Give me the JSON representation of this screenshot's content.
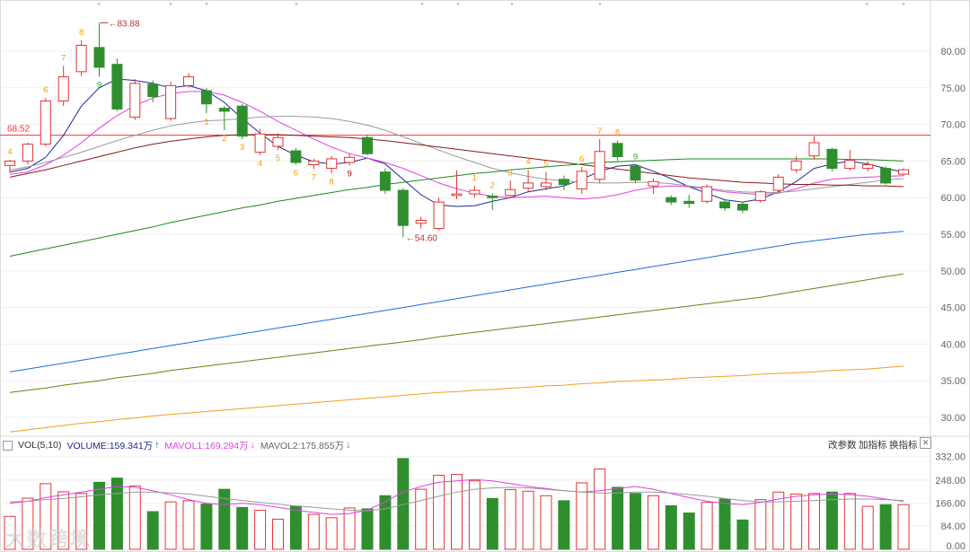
{
  "chart_data": {
    "type": "candlestick",
    "y_ticks": [
      "80.00",
      "75.00",
      "70.00",
      "65.00",
      "60.00",
      "55.00",
      "50.00",
      "45.00",
      "40.00",
      "35.00",
      "30.00"
    ],
    "ylim": [
      27,
      87
    ],
    "vol_ticks": [
      "332.00",
      "248.00",
      "166.00",
      "84.00",
      "0.00"
    ],
    "vol_lim": [
      0,
      360
    ],
    "ref_line": {
      "value": 68.52,
      "label": "68.52",
      "color": "#ff3030"
    },
    "max_label": {
      "value": 83.88,
      "label": "83.88",
      "index": 5
    },
    "min_label": {
      "value": 54.6,
      "label": "54.60",
      "index": 22
    },
    "candles": [
      {
        "o": 64.4,
        "c": 65.0,
        "h": 65.2,
        "l": 63.4,
        "v": 118,
        "td": "4",
        "tdc": "#f0a000",
        "tdp": "a"
      },
      {
        "o": 65.0,
        "c": 67.3,
        "h": 67.5,
        "l": 64.5,
        "v": 183,
        "td": "",
        "tdc": "",
        "tdp": ""
      },
      {
        "o": 67.3,
        "c": 73.2,
        "h": 73.6,
        "l": 67.0,
        "v": 235,
        "td": "6",
        "tdc": "#f0a000",
        "tdp": "a"
      },
      {
        "o": 73.2,
        "c": 76.5,
        "h": 78.0,
        "l": 72.5,
        "v": 206,
        "td": "7",
        "tdc": "#f0a000",
        "tdp": "a"
      },
      {
        "o": 77.2,
        "c": 80.8,
        "h": 81.5,
        "l": 76.6,
        "v": 200,
        "td": "8",
        "tdc": "#f0a000",
        "tdp": "a"
      },
      {
        "o": 80.5,
        "c": 77.8,
        "h": 83.88,
        "l": 76.5,
        "v": 240,
        "td": "9",
        "tdc": "#22aa22",
        "tdp": "b"
      },
      {
        "o": 78.2,
        "c": 72.1,
        "h": 79.0,
        "l": 71.8,
        "v": 255,
        "td": "",
        "tdc": "",
        "tdp": ""
      },
      {
        "o": 71.0,
        "c": 75.6,
        "h": 76.2,
        "l": 70.6,
        "v": 227,
        "td": "",
        "tdc": "",
        "tdp": ""
      },
      {
        "o": 75.5,
        "c": 73.8,
        "h": 76.0,
        "l": 73.0,
        "v": 135,
        "td": "",
        "tdc": "",
        "tdp": ""
      },
      {
        "o": 70.8,
        "c": 75.3,
        "h": 75.8,
        "l": 70.5,
        "v": 170,
        "td": "",
        "tdc": "",
        "tdp": ""
      },
      {
        "o": 75.3,
        "c": 76.5,
        "h": 77.0,
        "l": 75.0,
        "v": 174,
        "td": "",
        "tdc": "",
        "tdp": ""
      },
      {
        "o": 74.6,
        "c": 72.8,
        "h": 75.0,
        "l": 71.5,
        "v": 162,
        "td": "1",
        "tdc": "#f0a000",
        "tdp": "b"
      },
      {
        "o": 72.2,
        "c": 71.8,
        "h": 72.5,
        "l": 69.2,
        "v": 215,
        "td": "2",
        "tdc": "#f0a000",
        "tdp": "b"
      },
      {
        "o": 72.5,
        "c": 68.4,
        "h": 72.8,
        "l": 68.0,
        "v": 150,
        "td": "3",
        "tdc": "#f0a000",
        "tdp": "b"
      },
      {
        "o": 66.2,
        "c": 68.7,
        "h": 69.4,
        "l": 65.8,
        "v": 140,
        "td": "4",
        "tdc": "#f0a000",
        "tdp": "b"
      },
      {
        "o": 67.0,
        "c": 68.2,
        "h": 68.8,
        "l": 66.5,
        "v": 108,
        "td": "5",
        "tdc": "#f0a000",
        "tdp": "b"
      },
      {
        "o": 66.4,
        "c": 64.8,
        "h": 66.8,
        "l": 64.5,
        "v": 155,
        "td": "6",
        "tdc": "#f0a000",
        "tdp": "b"
      },
      {
        "o": 64.5,
        "c": 65.0,
        "h": 65.3,
        "l": 63.9,
        "v": 125,
        "td": "7",
        "tdc": "#f0a000",
        "tdp": "b"
      },
      {
        "o": 64.0,
        "c": 65.3,
        "h": 65.7,
        "l": 63.3,
        "v": 113,
        "td": "8",
        "tdc": "#f0a000",
        "tdp": "b"
      },
      {
        "o": 64.8,
        "c": 65.5,
        "h": 66.0,
        "l": 64.4,
        "v": 148,
        "td": "9",
        "tdc": "#d40000",
        "tdp": "b"
      },
      {
        "o": 68.2,
        "c": 66.0,
        "h": 68.5,
        "l": 65.8,
        "v": 145,
        "td": "",
        "tdc": "",
        "tdp": ""
      },
      {
        "o": 63.5,
        "c": 61.0,
        "h": 64.0,
        "l": 60.5,
        "v": 192,
        "td": "",
        "tdc": "",
        "tdp": ""
      },
      {
        "o": 61.0,
        "c": 56.2,
        "h": 61.3,
        "l": 54.6,
        "v": 325,
        "td": "",
        "tdc": "",
        "tdp": ""
      },
      {
        "o": 56.5,
        "c": 56.9,
        "h": 57.4,
        "l": 55.8,
        "v": 215,
        "td": "",
        "tdc": "",
        "tdp": ""
      },
      {
        "o": 55.8,
        "c": 59.4,
        "h": 60.0,
        "l": 55.5,
        "v": 265,
        "td": "",
        "tdc": "",
        "tdp": ""
      },
      {
        "o": 60.3,
        "c": 60.5,
        "h": 63.7,
        "l": 59.8,
        "v": 268,
        "td": "",
        "tdc": "",
        "tdp": ""
      },
      {
        "o": 60.5,
        "c": 61.0,
        "h": 61.6,
        "l": 60.0,
        "v": 245,
        "td": "1",
        "tdc": "#f0a000",
        "tdp": "a"
      },
      {
        "o": 60.2,
        "c": 60.0,
        "h": 60.6,
        "l": 58.3,
        "v": 182,
        "td": "2",
        "tdc": "#f0a000",
        "tdp": "a"
      },
      {
        "o": 60.3,
        "c": 61.1,
        "h": 62.3,
        "l": 59.9,
        "v": 214,
        "td": "3",
        "tdc": "#f0a000",
        "tdp": "a"
      },
      {
        "o": 61.3,
        "c": 62.0,
        "h": 63.8,
        "l": 60.8,
        "v": 208,
        "td": "4",
        "tdc": "#f0a000",
        "tdp": "a"
      },
      {
        "o": 61.5,
        "c": 62.0,
        "h": 63.5,
        "l": 61.0,
        "v": 192,
        "td": "5",
        "tdc": "#f0a000",
        "tdp": "a"
      },
      {
        "o": 62.5,
        "c": 61.8,
        "h": 63.0,
        "l": 61.0,
        "v": 174,
        "td": "",
        "tdc": "",
        "tdp": ""
      },
      {
        "o": 61.2,
        "c": 63.6,
        "h": 64.2,
        "l": 60.5,
        "v": 238,
        "td": "6",
        "tdc": "#f0a000",
        "tdp": "a"
      },
      {
        "o": 62.5,
        "c": 66.3,
        "h": 68.0,
        "l": 62.0,
        "v": 288,
        "td": "7",
        "tdc": "#f0a000",
        "tdp": "a"
      },
      {
        "o": 67.4,
        "c": 65.6,
        "h": 67.8,
        "l": 65.0,
        "v": 222,
        "td": "8",
        "tdc": "#f0a000",
        "tdp": "a"
      },
      {
        "o": 64.3,
        "c": 62.4,
        "h": 64.5,
        "l": 62.0,
        "v": 200,
        "td": "9",
        "tdc": "#22aa22",
        "tdp": "a"
      },
      {
        "o": 61.6,
        "c": 62.2,
        "h": 62.6,
        "l": 60.5,
        "v": 192,
        "td": "",
        "tdc": "",
        "tdp": ""
      },
      {
        "o": 60.0,
        "c": 59.4,
        "h": 60.3,
        "l": 59.0,
        "v": 156,
        "td": "",
        "tdc": "",
        "tdp": ""
      },
      {
        "o": 59.5,
        "c": 59.2,
        "h": 60.4,
        "l": 58.6,
        "v": 130,
        "td": "",
        "tdc": "",
        "tdp": ""
      },
      {
        "o": 59.5,
        "c": 61.5,
        "h": 61.8,
        "l": 59.2,
        "v": 168,
        "td": "",
        "tdc": "",
        "tdp": ""
      },
      {
        "o": 59.4,
        "c": 58.6,
        "h": 59.7,
        "l": 58.2,
        "v": 180,
        "td": "",
        "tdc": "",
        "tdp": ""
      },
      {
        "o": 59.1,
        "c": 58.3,
        "h": 59.4,
        "l": 57.9,
        "v": 105,
        "td": "",
        "tdc": "",
        "tdp": ""
      },
      {
        "o": 59.6,
        "c": 60.8,
        "h": 61.0,
        "l": 59.3,
        "v": 178,
        "td": "",
        "tdc": "",
        "tdp": ""
      },
      {
        "o": 61.0,
        "c": 62.8,
        "h": 63.2,
        "l": 60.7,
        "v": 205,
        "td": "",
        "tdc": "",
        "tdp": ""
      },
      {
        "o": 63.8,
        "c": 65.0,
        "h": 65.7,
        "l": 63.4,
        "v": 198,
        "td": "",
        "tdc": "",
        "tdp": ""
      },
      {
        "o": 65.7,
        "c": 67.5,
        "h": 68.4,
        "l": 65.2,
        "v": 200,
        "td": "",
        "tdc": "",
        "tdp": ""
      },
      {
        "o": 66.6,
        "c": 64.0,
        "h": 66.8,
        "l": 63.6,
        "v": 205,
        "td": "",
        "tdc": "",
        "tdp": ""
      },
      {
        "o": 64.0,
        "c": 65.1,
        "h": 66.5,
        "l": 63.7,
        "v": 200,
        "td": "",
        "tdc": "",
        "tdp": ""
      },
      {
        "o": 64.0,
        "c": 64.5,
        "h": 65.0,
        "l": 63.6,
        "v": 154,
        "td": "",
        "tdc": "",
        "tdp": ""
      },
      {
        "o": 64.0,
        "c": 62.0,
        "h": 64.3,
        "l": 61.8,
        "v": 160,
        "td": "",
        "tdc": "",
        "tdp": ""
      },
      {
        "o": 63.2,
        "c": 63.8,
        "h": 64.0,
        "l": 63.0,
        "v": 160,
        "td": "",
        "tdc": "",
        "tdp": ""
      }
    ],
    "overlays": [
      {
        "color": "#1e2a8c",
        "width": 1,
        "y": [
          63.5,
          64.0,
          65.5,
          68.5,
          72.5,
          75.0,
          76.2,
          76.0,
          75.6,
          75.0,
          75.3,
          74.6,
          73.0,
          70.8,
          68.8,
          67.0,
          65.8,
          64.9,
          64.6,
          64.8,
          65.4,
          64.6,
          62.5,
          60.4,
          59.0,
          58.8,
          58.9,
          59.5,
          60.0,
          60.8,
          61.2,
          61.6,
          62.5,
          63.6,
          64.3,
          64.5,
          63.6,
          62.6,
          61.5,
          60.6,
          59.7,
          59.4,
          59.8,
          60.8,
          62.2,
          64.0,
          64.6,
          65.0,
          64.6,
          64.0,
          63.5
        ]
      },
      {
        "color": "#e040e0",
        "width": 1,
        "y": [
          63.2,
          63.5,
          64.5,
          65.8,
          67.5,
          69.5,
          71.2,
          72.6,
          73.6,
          74.2,
          74.5,
          74.5,
          74.0,
          73.0,
          71.8,
          70.4,
          69.2,
          68.0,
          66.9,
          66.0,
          65.4,
          64.8,
          64.0,
          63.0,
          62.0,
          61.2,
          60.6,
          60.2,
          60.0,
          60.1,
          60.2,
          60.0,
          59.8,
          60.0,
          60.4,
          61.0,
          61.4,
          61.6,
          61.5,
          61.2,
          60.8,
          60.6,
          60.4,
          60.6,
          61.2,
          62.0,
          62.5,
          62.7,
          62.8,
          62.9,
          63.0
        ]
      },
      {
        "color": "#9a9a9a",
        "width": 1,
        "y": [
          63.8,
          64.2,
          64.8,
          65.5,
          66.2,
          67.0,
          67.8,
          68.5,
          69.2,
          69.8,
          70.2,
          70.5,
          70.6,
          70.8,
          71.0,
          71.1,
          71.1,
          71.0,
          70.8,
          70.4,
          69.9,
          69.2,
          68.3,
          67.4,
          66.5,
          65.6,
          64.8,
          64.0,
          63.4,
          62.9,
          62.5,
          62.3,
          62.1,
          62.0,
          62.0,
          62.1,
          62.1,
          61.9,
          61.6,
          61.3,
          61.0,
          60.8,
          60.7,
          60.7,
          60.9,
          61.2,
          61.5,
          61.8,
          62.1,
          62.4,
          62.6
        ]
      },
      {
        "color": "#8b1a1a",
        "width": 1,
        "y": [
          62.8,
          63.3,
          63.8,
          64.4,
          65.0,
          65.6,
          66.2,
          66.8,
          67.3,
          67.7,
          68.0,
          68.3,
          68.5,
          68.6,
          68.6,
          68.6,
          68.5,
          68.4,
          68.3,
          68.2,
          68.0,
          67.8,
          67.5,
          67.2,
          66.9,
          66.6,
          66.3,
          66.0,
          65.7,
          65.4,
          65.1,
          64.8,
          64.5,
          64.2,
          63.9,
          63.6,
          63.3,
          63.0,
          62.7,
          62.5,
          62.3,
          62.1,
          62.0,
          61.9,
          61.8,
          61.8,
          61.7,
          61.7,
          61.6,
          61.6,
          61.5
        ]
      },
      {
        "color": "#1a8a1a",
        "width": 1,
        "y": [
          52.0,
          52.5,
          53.0,
          53.5,
          54.0,
          54.5,
          55.0,
          55.5,
          56.0,
          56.6,
          57.1,
          57.6,
          58.1,
          58.6,
          59.0,
          59.5,
          59.9,
          60.3,
          60.7,
          61.1,
          61.4,
          61.8,
          62.1,
          62.4,
          62.7,
          63.0,
          63.3,
          63.5,
          63.8,
          64.0,
          64.2,
          64.4,
          64.6,
          64.8,
          64.9,
          65.0,
          65.1,
          65.2,
          65.3,
          65.3,
          65.3,
          65.3,
          65.3,
          65.3,
          65.3,
          65.3,
          65.3,
          65.2,
          65.2,
          65.1,
          65.0
        ]
      },
      {
        "color": "#1a6fd4",
        "width": 1,
        "y": [
          36.2,
          36.6,
          37.0,
          37.4,
          37.8,
          38.2,
          38.6,
          39.0,
          39.4,
          39.8,
          40.2,
          40.6,
          41.0,
          41.4,
          41.8,
          42.2,
          42.6,
          43.0,
          43.4,
          43.8,
          44.2,
          44.6,
          45.0,
          45.4,
          45.8,
          46.2,
          46.6,
          47.0,
          47.4,
          47.8,
          48.2,
          48.6,
          49.0,
          49.4,
          49.8,
          50.2,
          50.6,
          51.0,
          51.4,
          51.8,
          52.2,
          52.6,
          53.0,
          53.4,
          53.8,
          54.1,
          54.4,
          54.7,
          55.0,
          55.2,
          55.4
        ]
      },
      {
        "color": "#7a7a10",
        "width": 1,
        "y": [
          33.4,
          33.7,
          34.0,
          34.4,
          34.7,
          35.0,
          35.4,
          35.7,
          36.0,
          36.4,
          36.7,
          37.0,
          37.3,
          37.6,
          37.9,
          38.2,
          38.5,
          38.8,
          39.1,
          39.4,
          39.7,
          40.0,
          40.3,
          40.6,
          41.0,
          41.3,
          41.6,
          41.9,
          42.2,
          42.5,
          42.8,
          43.1,
          43.4,
          43.7,
          44.0,
          44.3,
          44.6,
          44.9,
          45.2,
          45.5,
          45.8,
          46.1,
          46.4,
          46.8,
          47.2,
          47.6,
          48.0,
          48.4,
          48.8,
          49.2,
          49.6
        ]
      },
      {
        "color": "#f0a020",
        "width": 1,
        "y": [
          28.0,
          28.3,
          28.6,
          28.9,
          29.2,
          29.4,
          29.7,
          29.9,
          30.2,
          30.4,
          30.6,
          30.8,
          31.0,
          31.2,
          31.4,
          31.6,
          31.8,
          32.0,
          32.2,
          32.4,
          32.6,
          32.8,
          33.0,
          33.2,
          33.4,
          33.5,
          33.7,
          33.8,
          34.0,
          34.1,
          34.3,
          34.4,
          34.6,
          34.7,
          34.9,
          35.0,
          35.1,
          35.2,
          35.4,
          35.5,
          35.6,
          35.7,
          35.9,
          36.0,
          36.1,
          36.2,
          36.4,
          36.5,
          36.6,
          36.8,
          37.0
        ]
      }
    ],
    "vol_overlays": [
      {
        "color": "#e040e0",
        "y": [
          165,
          172,
          185,
          195,
          205,
          215,
          225,
          222,
          210,
          195,
          178,
          165,
          160,
          165,
          160,
          150,
          140,
          132,
          125,
          128,
          140,
          170,
          205,
          225,
          240,
          245,
          250,
          245,
          235,
          225,
          218,
          210,
          205,
          210,
          218,
          225,
          215,
          200,
          185,
          172,
          165,
          160,
          168,
          180,
          190,
          195,
          198,
          196,
          190,
          180,
          172
        ]
      },
      {
        "color": "#9a9a9a",
        "y": [
          170,
          172,
          178,
          182,
          188,
          195,
          200,
          205,
          205,
          202,
          198,
          190,
          182,
          175,
          168,
          162,
          155,
          150,
          145,
          140,
          138,
          145,
          160,
          175,
          190,
          205,
          215,
          220,
          222,
          220,
          215,
          210,
          205,
          202,
          202,
          205,
          205,
          202,
          196,
          190,
          182,
          175,
          170,
          170,
          172,
          175,
          178,
          180,
          180,
          178,
          175
        ]
      }
    ]
  },
  "top_markers": [
    "*",
    "*",
    "*",
    "*",
    "*",
    "*",
    "*",
    "*",
    "*",
    "*",
    "*",
    "*"
  ],
  "vol_header": {
    "name": "VOL(5,10)",
    "volume": "VOLUME:159.341万",
    "volume_arrow": "↑",
    "mavol1": "MAVOL1:169.294万",
    "mavol1_arrow": "↓",
    "mavol2": "MAVOL2:175.855万",
    "mavol2_arrow": "↓",
    "change_params": "改参数",
    "add_indicator": "加指标",
    "swap_indicator": "换指标",
    "close_icon_label": "✕"
  },
  "watermark": "大数跨境",
  "colors": {
    "up": "#e23434",
    "down": "#2f8f2f",
    "grid": "#e8e8e8",
    "blue_text": "#1e2a8c",
    "magenta_text": "#e040e0",
    "gray_text": "#666666"
  }
}
